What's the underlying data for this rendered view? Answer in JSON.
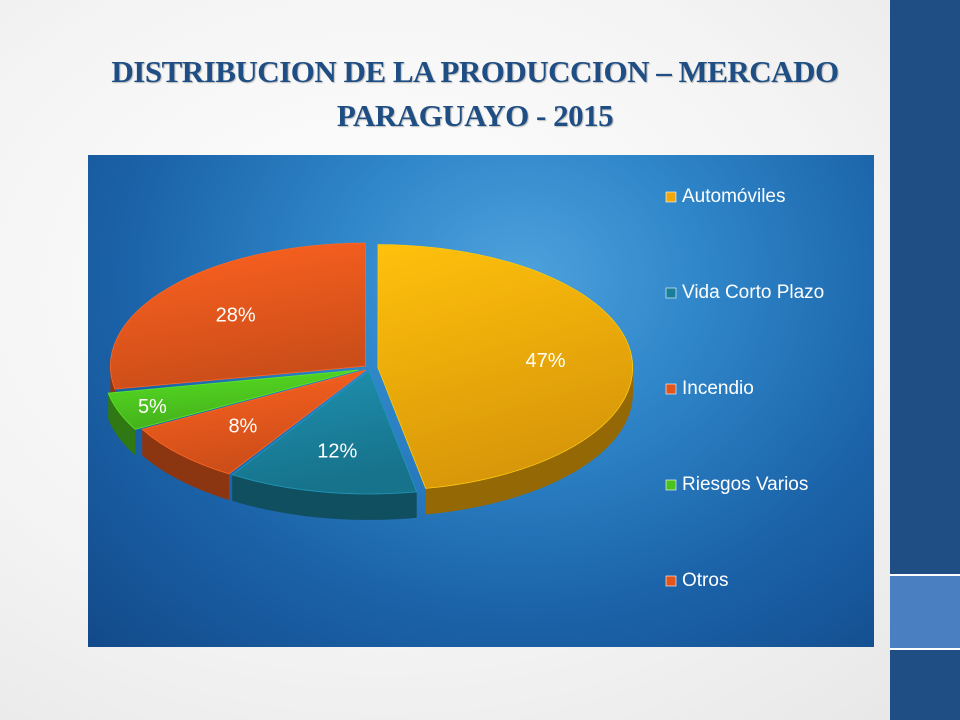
{
  "title": {
    "line1": "DISTRIBUCION DE LA PRODUCCION – MERCADO",
    "line2": "PARAGUAYO - 2015"
  },
  "chart_data": {
    "type": "pie",
    "title": "DISTRIBUCION DE LA PRODUCCION – MERCADO PARAGUAYO - 2015",
    "categories": [
      "Automóviles",
      "Vida Corto Plazo",
      "Incendio",
      "Riesgos Varios",
      "Otros"
    ],
    "values": [
      47,
      12,
      8,
      5,
      28
    ],
    "labels": [
      "47%",
      "12%",
      "8%",
      "5%",
      "28%"
    ],
    "colors": [
      "#f0a80a",
      "#1a7f9a",
      "#e2561c",
      "#4cc21e",
      "#e2561c"
    ],
    "legend_position": "right",
    "style": "3d-exploded"
  }
}
